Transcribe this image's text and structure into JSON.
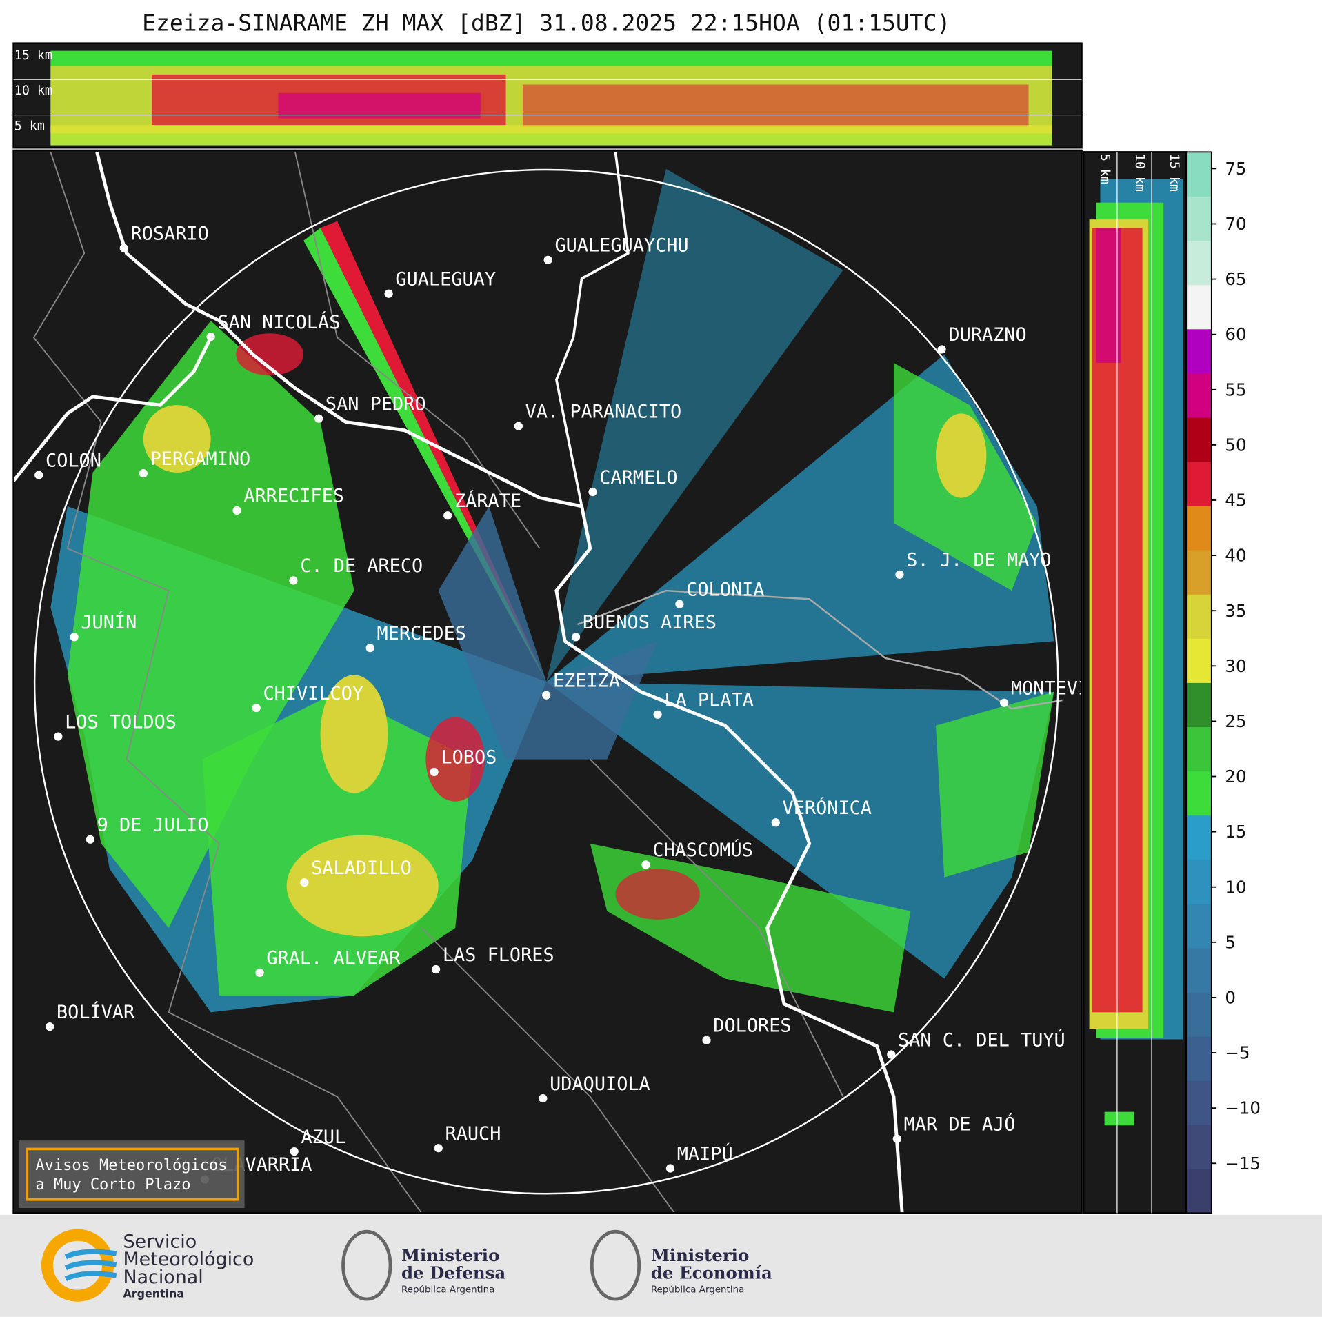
{
  "title": "Ezeiza-SINARAME ZH MAX [dBZ] 31.08.2025 22:15HOA (01:15UTC)",
  "profile_top": {
    "heights": [
      "15 km",
      "10 km",
      "5 km"
    ]
  },
  "profile_side": {
    "heights": [
      "5 km",
      "10 km",
      "15 km"
    ]
  },
  "cities": [
    "ROSARIO",
    "GUALEGUAYCHU",
    "GUALEGUAY",
    "SAN NICOLÁS",
    "DURAZNO",
    "SAN PEDRO",
    "VA. PARANACITO",
    "COLON",
    "PERGAMINO",
    "CARMELO",
    "ARRECIFES",
    "ZÁRATE",
    "S. J. DE MAYO",
    "C. DE ARECO",
    "COLONIA",
    "BUENOS AIRES",
    "JUNÍN",
    "MERCEDES",
    "MONTEVIDEO",
    "EZEIZA",
    "CHIVILCOY",
    "LA PLATA",
    "LOS TOLDOS",
    "LOBOS",
    "VERÓNICA",
    "9 DE JULIO",
    "CHASCOMÚS",
    "SALADILLO",
    "GRAL. ALVEAR",
    "LAS FLORES",
    "BOLÍVAR",
    "DOLORES",
    "SAN C. DEL TUYÚ",
    "UDAQUIOLA",
    "MAR DE AJÓ",
    "AZUL",
    "RAUCH",
    "MAIPÚ",
    "OLAVARRÍA"
  ],
  "colorbar": {
    "lim": [
      -19.5,
      76.5
    ],
    "ticks": [
      {
        "value": -15,
        "label": "−15"
      },
      {
        "value": -10,
        "label": "−10"
      },
      {
        "value": -5,
        "label": "−5"
      },
      0,
      5,
      10,
      15,
      20,
      25,
      30,
      35,
      40,
      45,
      50,
      55,
      60,
      65,
      70,
      75
    ],
    "colors": [
      "#3b3f6b",
      "#3f4a78",
      "#3e5585",
      "#3c6190",
      "#3a6e9a",
      "#3679a5",
      "#3385b2",
      "#2f91bd",
      "#2a9dc8",
      "#3ddc3a",
      "#3cc43a",
      "#2f8f2a",
      "#e6e634",
      "#d6d438",
      "#d8a02a",
      "#e08a1a",
      "#e01a34",
      "#b00018",
      "#d00080",
      "#b000c0",
      "#f4f4f4",
      "#c8ecdc",
      "#a8e4cc",
      "#88dcc0"
    ]
  },
  "notice": {
    "lines": [
      "Avisos Meteorológicos",
      "a Muy Corto Plazo"
    ]
  },
  "logos": [
    {
      "lines": [
        "Servicio",
        "Meteorológico",
        "Nacional",
        "Argentina"
      ]
    },
    {
      "lines": [
        "Ministerio",
        "de Defensa",
        "República Argentina"
      ]
    },
    {
      "lines": [
        "Ministerio",
        "de Economía",
        "República Argentina"
      ]
    }
  ]
}
